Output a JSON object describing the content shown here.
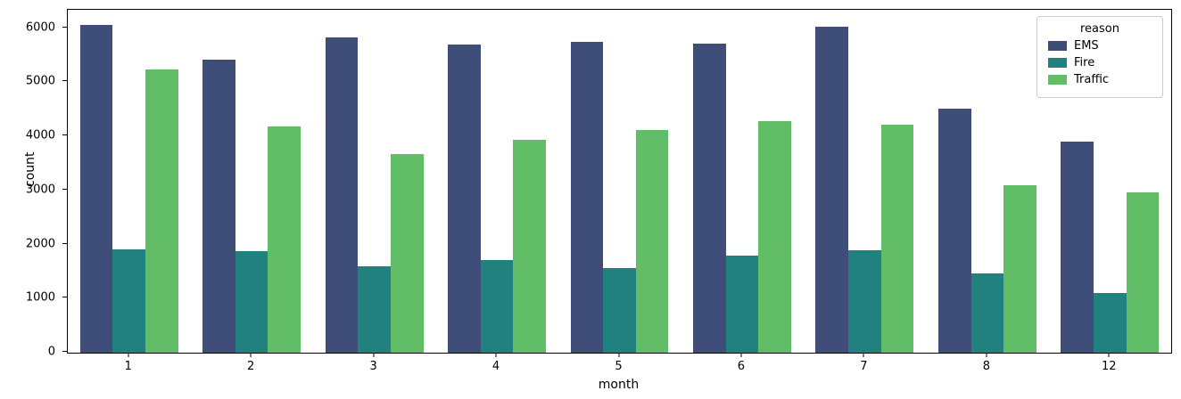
{
  "chart_data": {
    "type": "bar",
    "title": "",
    "xlabel": "month",
    "ylabel": "count",
    "categories": [
      "1",
      "2",
      "3",
      "4",
      "5",
      "6",
      "7",
      "8",
      "12"
    ],
    "series": [
      {
        "name": "EMS",
        "color": "#3e4e79",
        "values": [
          6060,
          5420,
          5830,
          5690,
          5740,
          5720,
          6030,
          4510,
          3900
        ]
      },
      {
        "name": "Fire",
        "color": "#20817f",
        "values": [
          1910,
          1870,
          1590,
          1720,
          1570,
          1800,
          1900,
          1470,
          1100
        ]
      },
      {
        "name": "Traffic",
        "color": "#62bd67",
        "values": [
          5240,
          4180,
          3680,
          3930,
          4120,
          4280,
          4210,
          3100,
          2960
        ]
      }
    ],
    "ylim": [
      0,
      6340
    ],
    "yticks": [
      0,
      1000,
      2000,
      3000,
      4000,
      5000,
      6000
    ],
    "legend_title": "reason",
    "legend_position": "upper right",
    "grid": false
  }
}
